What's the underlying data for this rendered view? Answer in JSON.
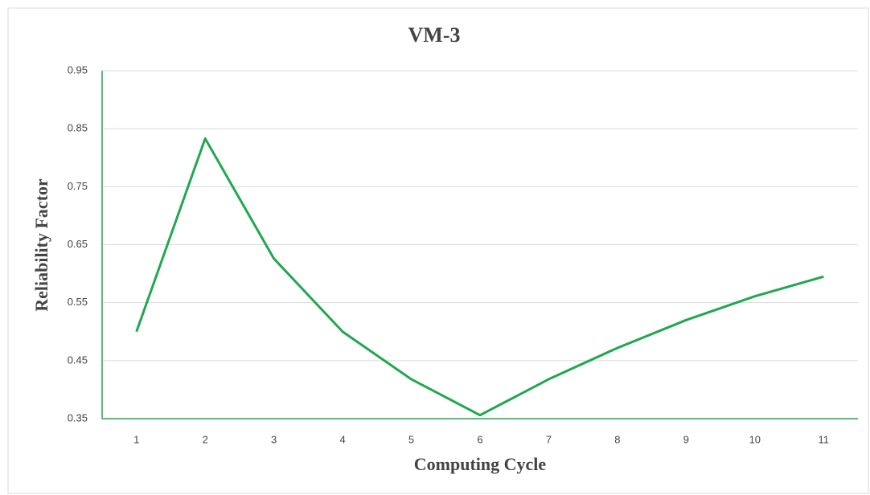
{
  "chart_data": {
    "type": "line",
    "title": "VM-3",
    "x_label": "Computing Cycle",
    "y_label": "Reliability Factor",
    "x": [
      1,
      2,
      3,
      4,
      5,
      6,
      7,
      8,
      9,
      10,
      11
    ],
    "xlim": [
      0.5,
      11.5
    ],
    "xticks": [
      1,
      2,
      3,
      4,
      5,
      6,
      7,
      8,
      9,
      10,
      11
    ],
    "series": [
      {
        "name": "VM-3",
        "color": "#1fa84f",
        "values": [
          0.5,
          0.833,
          0.626,
          0.5,
          0.418,
          0.356,
          0.418,
          0.472,
          0.52,
          0.561,
          0.595
        ]
      }
    ],
    "ylim": [
      0.35,
      0.95
    ],
    "yticks": [
      0.35,
      0.45,
      0.55,
      0.65,
      0.75,
      0.85,
      0.95
    ],
    "grid": true,
    "legend": false
  }
}
